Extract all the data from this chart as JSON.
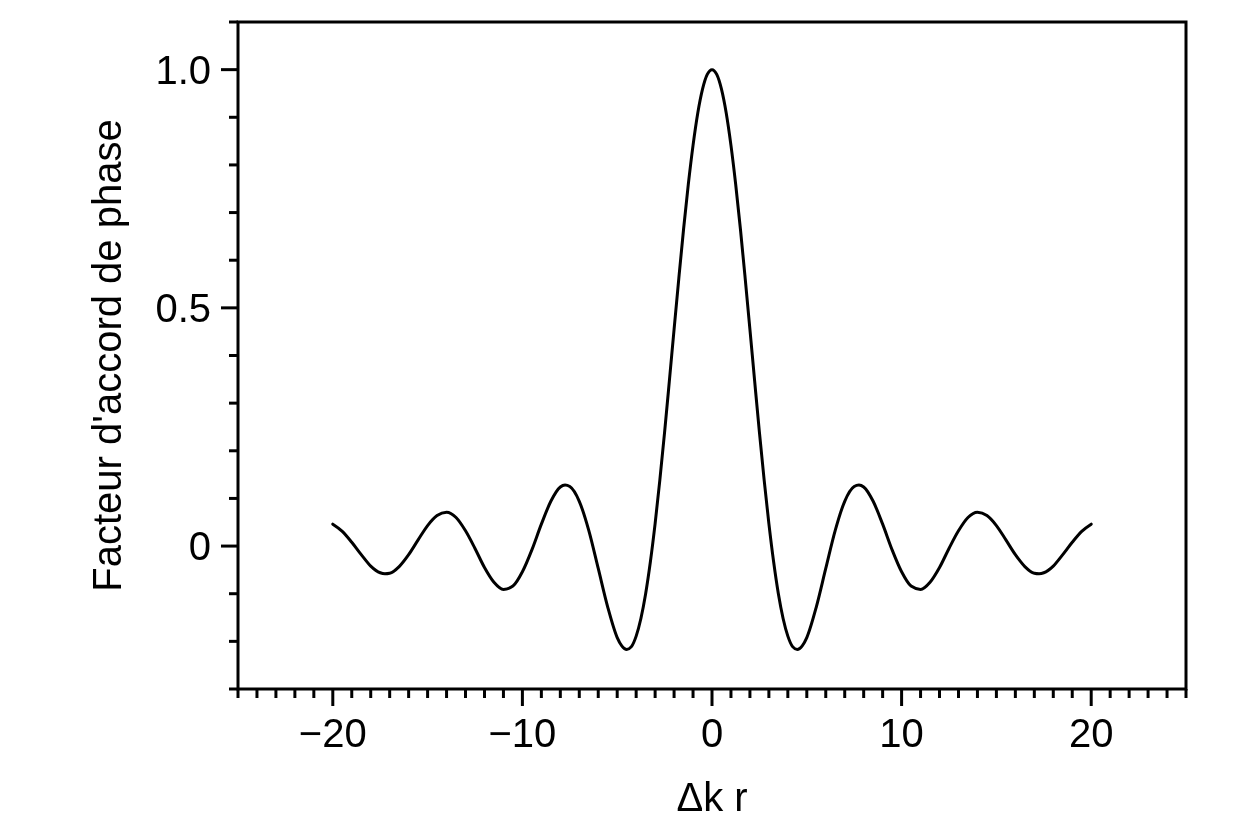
{
  "chart_data": {
    "type": "line",
    "xlabel": "Δk r",
    "ylabel": "Facteur d'accord de phase",
    "x": [
      -20,
      -19.5,
      -19,
      -18.5,
      -18,
      -17.5,
      -17.25,
      -17,
      -16.5,
      -16,
      -15.5,
      -15,
      -14.5,
      -14,
      -13.5,
      -13,
      -12.5,
      -12,
      -11.5,
      -11,
      -10.5,
      -10,
      -9.5,
      -9,
      -8.5,
      -8,
      -7.75,
      -7.5,
      -7,
      -6.5,
      -6,
      -5.5,
      -5,
      -4.75,
      -4.5,
      -4.25,
      -4,
      -3.75,
      -3.5,
      -3.25,
      -3,
      -2.75,
      -2.5,
      -2.25,
      -2,
      -1.75,
      -1.5,
      -1.25,
      -1,
      -0.75,
      -0.5,
      -0.25,
      0,
      0.25,
      0.5,
      0.75,
      1,
      1.25,
      1.5,
      1.75,
      2,
      2.25,
      2.5,
      2.75,
      3,
      3.25,
      3.5,
      3.75,
      4,
      4.25,
      4.5,
      4.75,
      5,
      5.5,
      6,
      6.5,
      7,
      7.5,
      7.75,
      8,
      8.5,
      9,
      9.5,
      10,
      10.5,
      11,
      11.5,
      12,
      12.5,
      13,
      13.5,
      14,
      14.5,
      15,
      15.5,
      16,
      16.5,
      17,
      17.25,
      17.5,
      18,
      18.5,
      19,
      19.5,
      20
    ],
    "series": [
      {
        "color": "#000000",
        "values": [
          0.046,
          0.031,
          0.008,
          -0.018,
          -0.042,
          -0.056,
          -0.058,
          -0.057,
          -0.043,
          -0.018,
          0.013,
          0.043,
          0.064,
          0.071,
          0.06,
          0.032,
          -0.005,
          -0.045,
          -0.076,
          -0.091,
          -0.084,
          -0.054,
          -0.008,
          0.046,
          0.094,
          0.124,
          0.128,
          0.125,
          0.094,
          0.033,
          -0.047,
          -0.128,
          -0.192,
          -0.21,
          -0.217,
          -0.211,
          -0.189,
          -0.152,
          -0.1,
          -0.033,
          0.047,
          0.139,
          0.239,
          0.346,
          0.455,
          0.562,
          0.665,
          0.759,
          0.841,
          0.909,
          0.959,
          0.99,
          1,
          0.99,
          0.959,
          0.909,
          0.841,
          0.759,
          0.665,
          0.562,
          0.455,
          0.346,
          0.239,
          0.139,
          0.047,
          -0.033,
          -0.1,
          -0.152,
          -0.189,
          -0.211,
          -0.217,
          -0.21,
          -0.192,
          -0.128,
          -0.047,
          0.033,
          0.094,
          0.125,
          0.128,
          0.124,
          0.094,
          0.046,
          -0.008,
          -0.054,
          -0.084,
          -0.091,
          -0.076,
          -0.045,
          -0.005,
          0.032,
          0.06,
          0.071,
          0.064,
          0.043,
          0.013,
          -0.018,
          -0.043,
          -0.057,
          -0.058,
          -0.056,
          -0.042,
          -0.018,
          0.008,
          0.031,
          0.046
        ]
      }
    ],
    "xlim": [
      -25,
      25
    ],
    "ylim": [
      -0.3,
      1.1
    ],
    "xticks": [
      {
        "value": -25,
        "label": null
      },
      {
        "value": -24,
        "label": null
      },
      {
        "value": -23,
        "label": null
      },
      {
        "value": -22,
        "label": null
      },
      {
        "value": -21,
        "label": null
      },
      {
        "value": -20,
        "label": "−20"
      },
      {
        "value": -19,
        "label": null
      },
      {
        "value": -18,
        "label": null
      },
      {
        "value": -17,
        "label": null
      },
      {
        "value": -16,
        "label": null
      },
      {
        "value": -15,
        "label": null
      },
      {
        "value": -14,
        "label": null
      },
      {
        "value": -13,
        "label": null
      },
      {
        "value": -12,
        "label": null
      },
      {
        "value": -11,
        "label": null
      },
      {
        "value": -10,
        "label": "−10"
      },
      {
        "value": -9,
        "label": null
      },
      {
        "value": -8,
        "label": null
      },
      {
        "value": -7,
        "label": null
      },
      {
        "value": -6,
        "label": null
      },
      {
        "value": -5,
        "label": null
      },
      {
        "value": -4,
        "label": null
      },
      {
        "value": -3,
        "label": null
      },
      {
        "value": -2,
        "label": null
      },
      {
        "value": -1,
        "label": null
      },
      0,
      {
        "value": 1,
        "label": null
      },
      {
        "value": 2,
        "label": null
      },
      {
        "value": 3,
        "label": null
      },
      {
        "value": 4,
        "label": null
      },
      {
        "value": 5,
        "label": null
      },
      {
        "value": 6,
        "label": null
      },
      {
        "value": 7,
        "label": null
      },
      {
        "value": 8,
        "label": null
      },
      {
        "value": 9,
        "label": null
      },
      10,
      {
        "value": 11,
        "label": null
      },
      {
        "value": 12,
        "label": null
      },
      {
        "value": 13,
        "label": null
      },
      {
        "value": 14,
        "label": null
      },
      {
        "value": 15,
        "label": null
      },
      {
        "value": 16,
        "label": null
      },
      {
        "value": 17,
        "label": null
      },
      {
        "value": 18,
        "label": null
      },
      {
        "value": 19,
        "label": null
      },
      20,
      {
        "value": 21,
        "label": null
      },
      {
        "value": 22,
        "label": null
      },
      {
        "value": 23,
        "label": null
      },
      {
        "value": 24,
        "label": null
      },
      {
        "value": 25,
        "label": null
      }
    ],
    "yticks": [
      {
        "value": -0.3,
        "label": null
      },
      {
        "value": -0.2,
        "label": null
      },
      {
        "value": -0.1,
        "label": null
      },
      0,
      {
        "value": 0.1,
        "label": null
      },
      {
        "value": 0.2,
        "label": null
      },
      {
        "value": 0.3,
        "label": null
      },
      {
        "value": 0.4,
        "label": null
      },
      0.5,
      {
        "value": 0.6,
        "label": null
      },
      {
        "value": 0.7,
        "label": null
      },
      {
        "value": 0.8,
        "label": null
      },
      {
        "value": 0.9,
        "label": null
      },
      {
        "value": 1,
        "label": "1.0"
      },
      {
        "value": 1.1,
        "label": null
      }
    ],
    "line_style": "solid"
  }
}
